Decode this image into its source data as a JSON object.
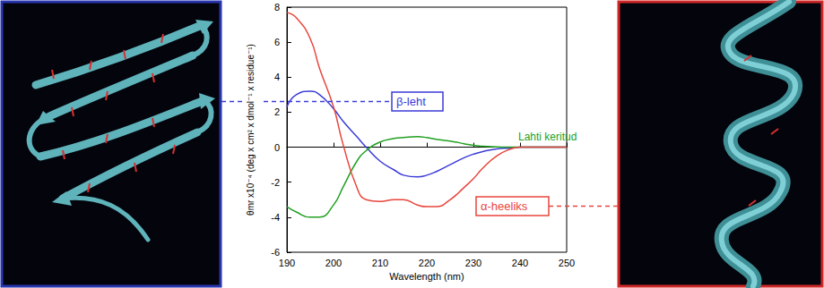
{
  "chart_data": {
    "type": "line",
    "x_label": "Wavelength (nm)",
    "y_label": "θmr x10⁻⁴ (deg x cm² x dmol⁻¹ x residue⁻¹)",
    "x": [
      190,
      192,
      195,
      197,
      200,
      202,
      205,
      207,
      210,
      213,
      215,
      218,
      220,
      222,
      225,
      228,
      230,
      232,
      235,
      238,
      240,
      245,
      250
    ],
    "series": [
      {
        "name": "β-leht",
        "color": "#3b3bd9",
        "values": [
          2.3,
          3.0,
          3.2,
          3.0,
          2.2,
          1.5,
          0.6,
          0,
          -0.8,
          -1.3,
          -1.6,
          -1.7,
          -1.6,
          -1.4,
          -1.0,
          -0.6,
          -0.4,
          -0.25,
          -0.1,
          -0.05,
          0,
          0,
          0
        ]
      },
      {
        "name": "Lahti keritud",
        "color": "#22a022",
        "values": [
          -3.4,
          -3.7,
          -4.0,
          -4.0,
          -3.3,
          -2.3,
          -0.8,
          -0.2,
          0.3,
          0.5,
          0.55,
          0.6,
          0.55,
          0.45,
          0.35,
          0.2,
          0.1,
          0.05,
          0.02,
          0,
          0,
          0,
          0
        ]
      },
      {
        "name": "α-heeliks",
        "color": "#e8453c",
        "values": [
          7.7,
          7.4,
          6.2,
          4.5,
          2.3,
          0.2,
          -2.3,
          -3.0,
          -3.1,
          -3.0,
          -3.0,
          -3.3,
          -3.4,
          -3.4,
          -3.0,
          -2.3,
          -1.8,
          -1.2,
          -0.5,
          -0.1,
          0,
          0,
          0
        ]
      }
    ],
    "xlim": [
      190,
      250
    ],
    "xticks": [
      190,
      200,
      210,
      220,
      230,
      240,
      250
    ],
    "ylim": [
      -6,
      8
    ],
    "yticks": [
      -6,
      -4,
      -2,
      0,
      2,
      4,
      6,
      8
    ],
    "grid": false
  }
}
